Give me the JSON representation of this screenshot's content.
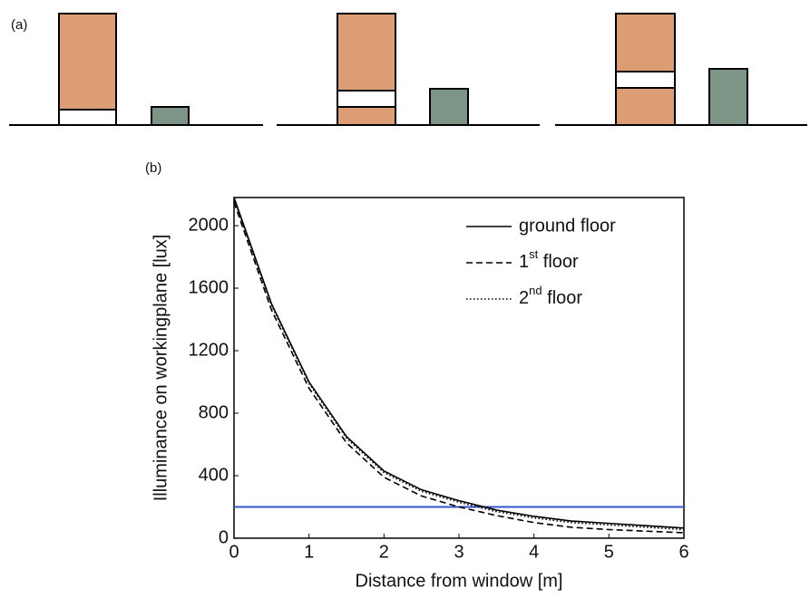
{
  "panel_a": {
    "label": "(a)"
  },
  "chart_data": {
    "type": "line",
    "label": "(b)",
    "x_label": "Distance from window [m]",
    "y_label": "Illuminance on workingplane [lux]",
    "xlim": [
      0,
      6
    ],
    "xticks": [
      0,
      1,
      2,
      3,
      4,
      5,
      6
    ],
    "ylim": [
      0,
      2180
    ],
    "yticks": [
      0,
      400,
      800,
      1200,
      1600,
      2000
    ],
    "x": [
      0,
      0.5,
      1,
      1.5,
      2,
      2.5,
      3,
      3.5,
      4,
      4.5,
      5,
      5.5,
      6
    ],
    "series": [
      {
        "name": "ground floor",
        "color": "#000000",
        "dash": "solid",
        "values": [
          2180,
          1500,
          1000,
          650,
          430,
          310,
          240,
          180,
          140,
          110,
          95,
          80,
          65
        ]
      },
      {
        "name": "1st floor",
        "color": "#000000",
        "dash": "dashed",
        "values": [
          2150,
          1460,
          960,
          610,
          390,
          270,
          200,
          145,
          100,
          70,
          55,
          45,
          35
        ]
      },
      {
        "name": "2nd floor",
        "color": "#000000",
        "dash": "dotted",
        "values": [
          2170,
          1490,
          990,
          640,
          420,
          300,
          230,
          170,
          130,
          100,
          85,
          70,
          55
        ]
      }
    ],
    "reference_line": {
      "value": 200,
      "color": "#3355cc"
    },
    "legend": "upper right"
  }
}
